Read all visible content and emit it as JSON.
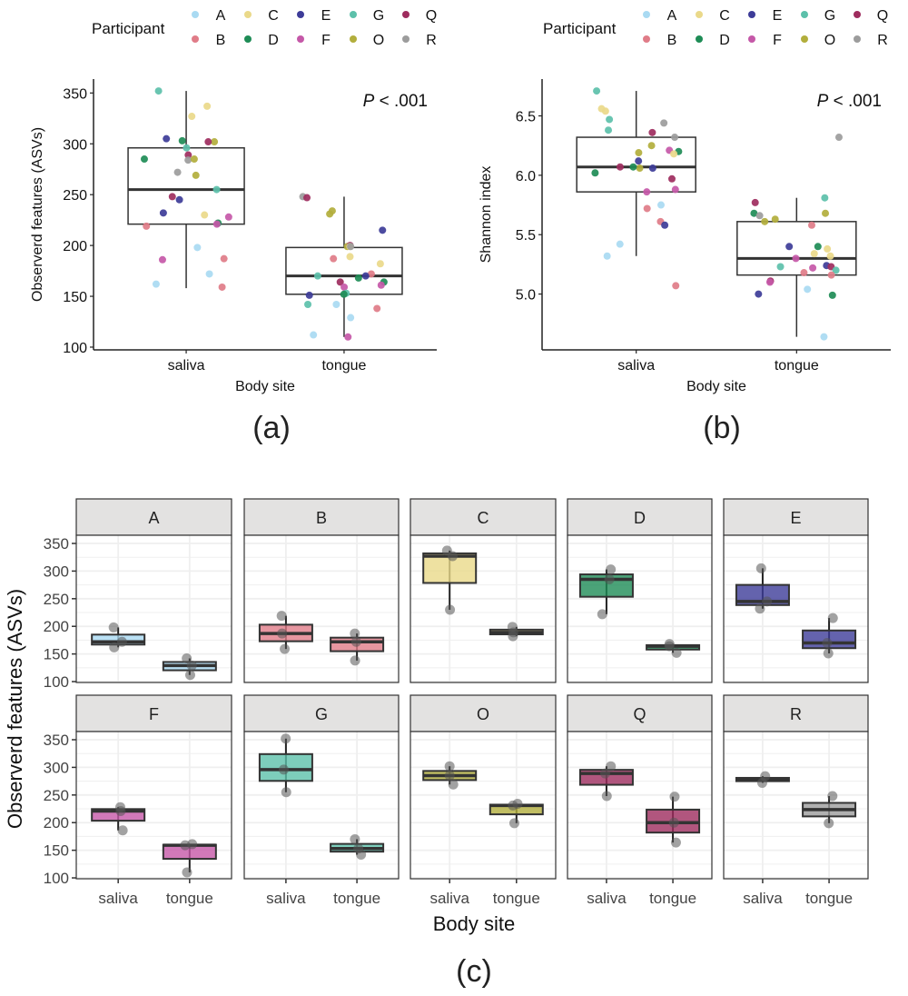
{
  "legend": {
    "title": "Participant",
    "items": [
      {
        "id": "A",
        "color": "#a9daf2"
      },
      {
        "id": "B",
        "color": "#e07c88"
      },
      {
        "id": "C",
        "color": "#ead98a"
      },
      {
        "id": "D",
        "color": "#1e8c56"
      },
      {
        "id": "E",
        "color": "#3d3c98"
      },
      {
        "id": "F",
        "color": "#c558a8"
      },
      {
        "id": "G",
        "color": "#5cc0aa"
      },
      {
        "id": "O",
        "color": "#b2ae3c"
      },
      {
        "id": "Q",
        "color": "#9e2c5e"
      },
      {
        "id": "R",
        "color": "#9c9c9c"
      }
    ]
  },
  "panel_labels": [
    "(a)",
    "(b)",
    "(c)"
  ],
  "chart_data": [
    {
      "type": "box+jitter",
      "ylabel": "Observerd features (ASVs)",
      "xlabel": "Body site",
      "categories": [
        "saliva",
        "tongue"
      ],
      "yticks": [
        100,
        150,
        200,
        250,
        300,
        350
      ],
      "ylim": [
        97.3,
        363.7
      ],
      "annotation": {
        "italic": "P",
        "text": " < .001"
      },
      "boxes": {
        "saliva": {
          "min": 158,
          "q1": 221,
          "median": 255,
          "q3": 296,
          "max": 352
        },
        "tongue": {
          "min": 110,
          "q1": 152,
          "median": 170,
          "q3": 198,
          "max": 248
        }
      },
      "points": {
        "saliva": [
          [
            "G",
            352
          ],
          [
            "C",
            337
          ],
          [
            "C",
            327
          ],
          [
            "D",
            303
          ],
          [
            "E",
            305
          ],
          [
            "O",
            302
          ],
          [
            "Q",
            302
          ],
          [
            "G",
            296
          ],
          [
            "Q",
            289
          ],
          [
            "R",
            284
          ],
          [
            "D",
            285
          ],
          [
            "O",
            285
          ],
          [
            "O",
            269
          ],
          [
            "R",
            272
          ],
          [
            "G",
            255
          ],
          [
            "Q",
            248
          ],
          [
            "E",
            245
          ],
          [
            "E",
            232
          ],
          [
            "F",
            228
          ],
          [
            "C",
            230
          ],
          [
            "D",
            222
          ],
          [
            "F",
            221
          ],
          [
            "B",
            219
          ],
          [
            "A",
            198
          ],
          [
            "B",
            187
          ],
          [
            "F",
            186
          ],
          [
            "A",
            172
          ],
          [
            "A",
            162
          ],
          [
            "B",
            159
          ]
        ],
        "tongue": [
          [
            "R",
            248
          ],
          [
            "Q",
            247
          ],
          [
            "O",
            234
          ],
          [
            "O",
            231
          ],
          [
            "E",
            215
          ],
          [
            "O",
            199
          ],
          [
            "Q",
            200
          ],
          [
            "C",
            199
          ],
          [
            "R",
            199
          ],
          [
            "C",
            189
          ],
          [
            "B",
            187
          ],
          [
            "C",
            182
          ],
          [
            "B",
            172
          ],
          [
            "G",
            170
          ],
          [
            "E",
            170
          ],
          [
            "D",
            168
          ],
          [
            "D",
            164
          ],
          [
            "Q",
            164
          ],
          [
            "F",
            161
          ],
          [
            "F",
            159
          ],
          [
            "G",
            153
          ],
          [
            "D",
            152
          ],
          [
            "E",
            151
          ],
          [
            "G",
            142
          ],
          [
            "A",
            142
          ],
          [
            "B",
            138
          ],
          [
            "A",
            129
          ],
          [
            "A",
            112
          ],
          [
            "F",
            110
          ]
        ]
      }
    },
    {
      "type": "box+jitter",
      "ylabel": "Shannon index",
      "xlabel": "Body site",
      "categories": [
        "saliva",
        "tongue"
      ],
      "yticks": [
        5.0,
        5.5,
        6.0,
        6.5
      ],
      "ytick_labels": [
        "5.0",
        "5.5",
        "6.0",
        "6.5"
      ],
      "ylim": [
        4.53,
        6.81
      ],
      "annotation": {
        "italic": "P",
        "text": " < .001"
      },
      "boxes": {
        "saliva": {
          "min": 5.32,
          "q1": 5.86,
          "median": 6.07,
          "q3": 6.32,
          "max": 6.71
        },
        "tongue": {
          "min": 4.64,
          "q1": 5.16,
          "median": 5.3,
          "q3": 5.61,
          "max": 5.81
        }
      },
      "points": {
        "saliva": [
          [
            "G",
            6.71
          ],
          [
            "C",
            6.54
          ],
          [
            "C",
            6.56
          ],
          [
            "R",
            6.44
          ],
          [
            "G",
            6.47
          ],
          [
            "G",
            6.38
          ],
          [
            "Q",
            6.36
          ],
          [
            "R",
            6.32
          ],
          [
            "O",
            6.25
          ],
          [
            "D",
            6.2
          ],
          [
            "F",
            6.21
          ],
          [
            "O",
            6.19
          ],
          [
            "C",
            6.18
          ],
          [
            "E",
            6.12
          ],
          [
            "Q",
            6.07
          ],
          [
            "E",
            6.06
          ],
          [
            "O",
            6.06
          ],
          [
            "D",
            6.07
          ],
          [
            "D",
            6.02
          ],
          [
            "Q",
            5.97
          ],
          [
            "F",
            5.88
          ],
          [
            "F",
            5.86
          ],
          [
            "A",
            5.75
          ],
          [
            "B",
            5.72
          ],
          [
            "B",
            5.61
          ],
          [
            "E",
            5.58
          ],
          [
            "A",
            5.42
          ],
          [
            "A",
            5.32
          ],
          [
            "B",
            5.07
          ]
        ],
        "tongue": [
          [
            "R",
            6.32
          ],
          [
            "G",
            5.81
          ],
          [
            "Q",
            5.77
          ],
          [
            "D",
            5.68
          ],
          [
            "O",
            5.68
          ],
          [
            "R",
            5.66
          ],
          [
            "O",
            5.63
          ],
          [
            "O",
            5.61
          ],
          [
            "B",
            5.58
          ],
          [
            "E",
            5.4
          ],
          [
            "D",
            5.4
          ],
          [
            "C",
            5.38
          ],
          [
            "C",
            5.34
          ],
          [
            "C",
            5.32
          ],
          [
            "F",
            5.3
          ],
          [
            "E",
            5.24
          ],
          [
            "G",
            5.23
          ],
          [
            "Q",
            5.23
          ],
          [
            "F",
            5.22
          ],
          [
            "G",
            5.2
          ],
          [
            "B",
            5.18
          ],
          [
            "B",
            5.16
          ],
          [
            "Q",
            5.11
          ],
          [
            "F",
            5.1
          ],
          [
            "A",
            5.04
          ],
          [
            "E",
            5.0
          ],
          [
            "D",
            4.99
          ],
          [
            "A",
            4.64
          ]
        ]
      }
    },
    {
      "type": "faceted-box",
      "ylabel": "Observerd features (ASVs)",
      "xlabel": "Body site",
      "categories": [
        "saliva",
        "tongue"
      ],
      "yticks": [
        100,
        150,
        200,
        250,
        300,
        350
      ],
      "ylim": [
        98.4,
        364.8
      ],
      "facets": [
        {
          "id": "A",
          "saliva": [
            198,
            172,
            162
          ],
          "tongue": [
            142,
            129,
            112
          ]
        },
        {
          "id": "B",
          "saliva": [
            219,
            187,
            159
          ],
          "tongue": [
            187,
            172,
            138
          ]
        },
        {
          "id": "C",
          "saliva": [
            337,
            327,
            230
          ],
          "tongue": [
            199,
            189,
            182
          ]
        },
        {
          "id": "D",
          "saliva": [
            303,
            285,
            222
          ],
          "tongue": [
            168,
            164,
            152
          ]
        },
        {
          "id": "E",
          "saliva": [
            305,
            245,
            232
          ],
          "tongue": [
            215,
            170,
            151
          ]
        },
        {
          "id": "F",
          "saliva": [
            228,
            221,
            186
          ],
          "tongue": [
            161,
            159,
            110
          ]
        },
        {
          "id": "G",
          "saliva": [
            352,
            296,
            255
          ],
          "tongue": [
            170,
            153,
            142
          ]
        },
        {
          "id": "O",
          "saliva": [
            302,
            285,
            269
          ],
          "tongue": [
            234,
            231,
            199
          ]
        },
        {
          "id": "Q",
          "saliva": [
            302,
            289,
            248
          ],
          "tongue": [
            247,
            200,
            164
          ]
        },
        {
          "id": "R",
          "saliva": [
            284,
            272
          ],
          "tongue": [
            248,
            199
          ]
        }
      ]
    }
  ]
}
